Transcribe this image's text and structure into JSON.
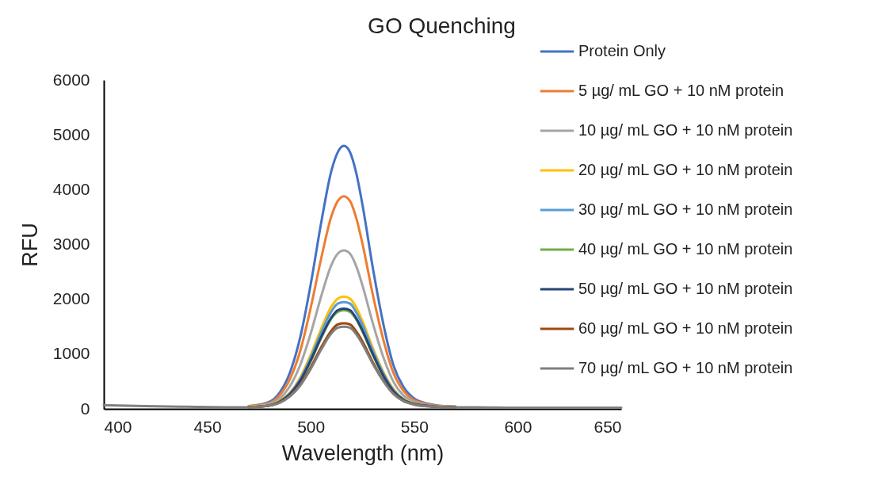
{
  "chart_data": {
    "type": "line",
    "title": "GO Quenching",
    "xlabel": "Wavelength (nm)",
    "ylabel": "RFU",
    "x": [
      400,
      420,
      440,
      460,
      470,
      480,
      485,
      490,
      495,
      500,
      505,
      510,
      513,
      516,
      519,
      522,
      525,
      530,
      535,
      540,
      545,
      550,
      555,
      560,
      570,
      580,
      600,
      620,
      650
    ],
    "xlim": [
      400,
      650
    ],
    "xticks": [
      400,
      450,
      500,
      550,
      600,
      650
    ],
    "ylim": [
      0,
      6000
    ],
    "yticks": [
      0,
      1000,
      2000,
      3000,
      4000,
      5000,
      6000
    ],
    "grid": false,
    "legend": "top right",
    "marker": "none",
    "line_style": "solid",
    "series": [
      {
        "name": "Protein Only",
        "color": "#4472c4",
        "values": [
          null,
          null,
          null,
          null,
          50,
          130,
          300,
          670,
          1320,
          2280,
          3390,
          4350,
          4680,
          4800,
          4680,
          4300,
          3720,
          2570,
          1560,
          790,
          390,
          190,
          110,
          70,
          40,
          null,
          null,
          null,
          null
        ]
      },
      {
        "name": "5 µg/ mL GO + 10 nM protein",
        "color": "#ed7d31",
        "values": [
          null,
          null,
          null,
          null,
          50,
          110,
          250,
          550,
          1070,
          1850,
          2740,
          3520,
          3790,
          3880,
          3790,
          3480,
          3010,
          2080,
          1270,
          650,
          320,
          160,
          100,
          60,
          40,
          null,
          null,
          null,
          null
        ]
      },
      {
        "name": "10 µg/ mL GO + 10 nM protein",
        "color": "#a5a5a5",
        "values": [
          null,
          null,
          null,
          null,
          40,
          90,
          190,
          420,
          810,
          1380,
          2050,
          2630,
          2830,
          2890,
          2830,
          2600,
          2250,
          1560,
          950,
          490,
          240,
          130,
          80,
          50,
          40,
          null,
          null,
          null,
          null
        ]
      },
      {
        "name": "20 µg/ mL GO + 10 nM protein",
        "color": "#ffc000",
        "values": [
          null,
          null,
          null,
          null,
          40,
          70,
          150,
          300,
          580,
          990,
          1460,
          1870,
          2010,
          2050,
          2010,
          1850,
          1600,
          1110,
          680,
          360,
          180,
          100,
          60,
          null,
          null,
          null,
          null,
          null,
          null
        ]
      },
      {
        "name": "30 µg/ mL GO + 10 nM protein",
        "color": "#5b9bd5",
        "values": [
          null,
          null,
          null,
          null,
          null,
          70,
          140,
          290,
          550,
          940,
          1390,
          1780,
          1920,
          1950,
          1920,
          1760,
          1530,
          1060,
          650,
          340,
          170,
          90,
          60,
          40,
          30,
          null,
          null,
          null,
          null
        ]
      },
      {
        "name": "40 µg/ mL GO + 10 nM protein",
        "color": "#70ad47",
        "values": [
          null,
          null,
          null,
          null,
          30,
          60,
          130,
          270,
          510,
          870,
          1290,
          1650,
          1770,
          1800,
          1770,
          1630,
          1410,
          980,
          600,
          310,
          160,
          90,
          60,
          40,
          30,
          null,
          null,
          null,
          null
        ]
      },
      {
        "name": "50 µg/ mL GO + 10 nM protein",
        "color": "#264478",
        "values": [
          null,
          null,
          null,
          null,
          30,
          60,
          130,
          270,
          520,
          890,
          1310,
          1670,
          1800,
          1830,
          1800,
          1650,
          1430,
          1000,
          610,
          320,
          160,
          90,
          60,
          40,
          30,
          null,
          null,
          null,
          null
        ]
      },
      {
        "name": "60 µg/ mL GO + 10 nM protein",
        "color": "#9e480e",
        "values": [
          null,
          null,
          null,
          null,
          30,
          60,
          120,
          240,
          450,
          760,
          1120,
          1430,
          1540,
          1560,
          1540,
          1410,
          1230,
          850,
          520,
          280,
          140,
          80,
          50,
          40,
          30,
          null,
          null,
          null,
          null
        ]
      },
      {
        "name": "70 µg/ mL GO + 10 nM protein",
        "color": "#7f7f7f",
        "values": [
          70,
          50,
          40,
          30,
          30,
          60,
          110,
          230,
          430,
          730,
          1080,
          1380,
          1480,
          1500,
          1480,
          1360,
          1180,
          820,
          510,
          270,
          140,
          80,
          50,
          40,
          30,
          30,
          20,
          20,
          20
        ]
      }
    ]
  }
}
